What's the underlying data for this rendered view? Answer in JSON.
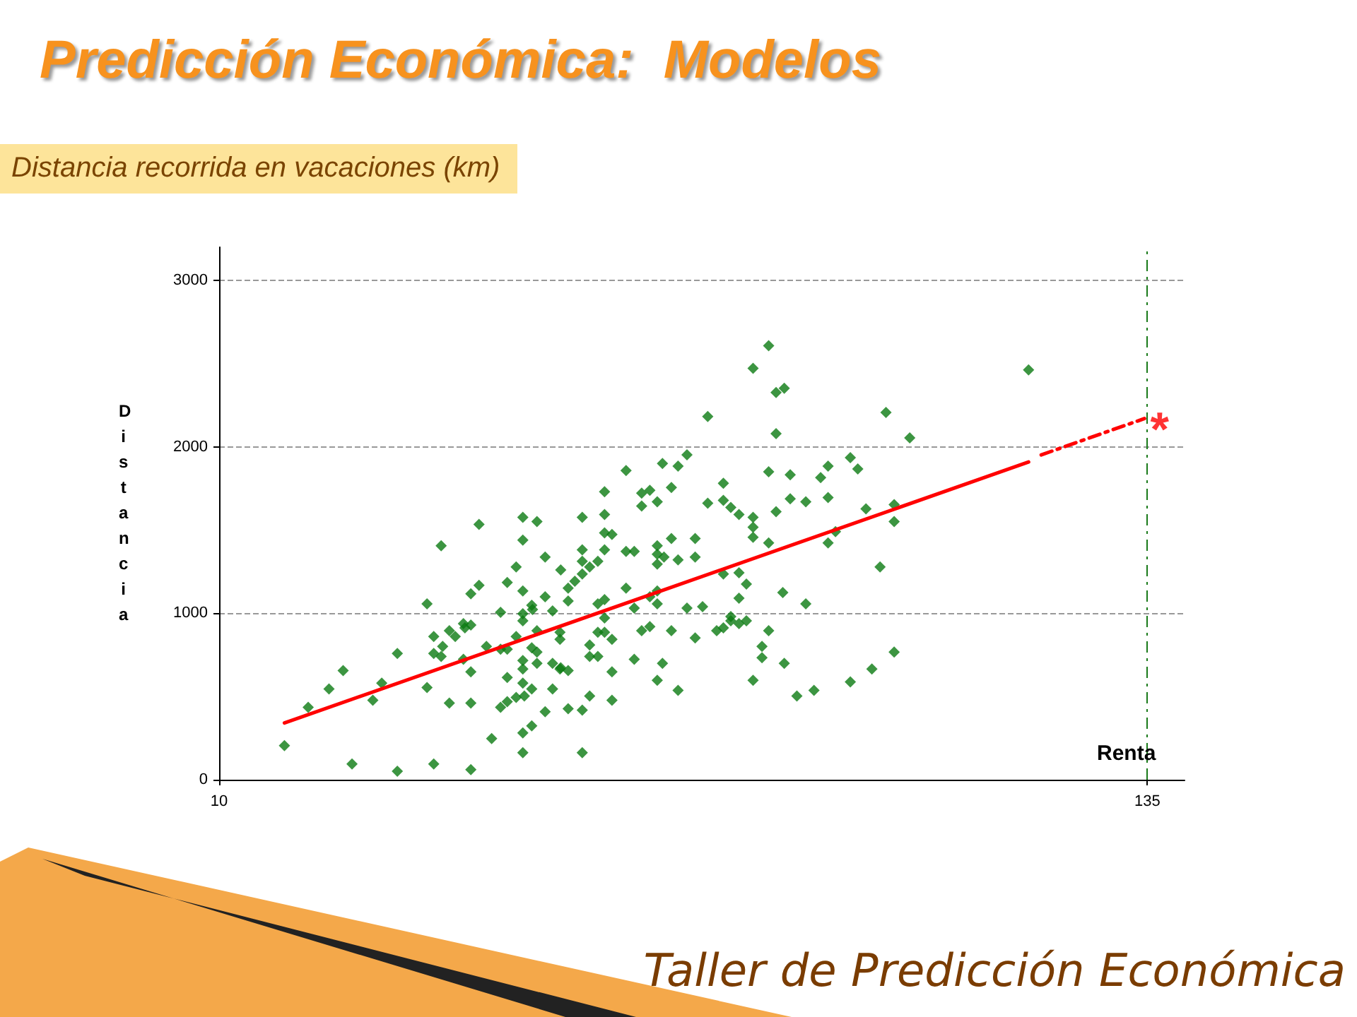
{
  "chart_data": {
    "type": "scatter",
    "title": "Predicción Económica:  Modelos",
    "subtitle": "Distancia recorrida en vacaciones (km)",
    "xlabel": "Renta",
    "ylabel": "Distancia",
    "xlim": [
      10,
      140
    ],
    "xticks": [
      10,
      135
    ],
    "ylim": [
      0,
      3200
    ],
    "yticks": [
      0,
      1000,
      2000,
      3000
    ],
    "grid": "y",
    "marker": "diamond",
    "series": [
      {
        "color": "#0b7a12",
        "x": [
          18.8,
          22.0,
          24.8,
          26.7,
          27.9,
          30.7,
          31.9,
          34.0,
          34.0,
          38.0,
          38.0,
          38.9,
          38.9,
          39.9,
          38.9,
          39.9,
          40.1,
          41.0,
          41.0,
          41.8,
          42.9,
          43.1,
          43.9,
          42.9,
          43.9,
          43.9,
          43.9,
          43.9,
          45.0,
          45.0,
          46.0,
          46.7,
          47.9,
          47.9,
          48.8,
          47.9,
          48.8,
          48.8,
          48.8,
          50.0,
          51.1,
          50.0,
          50.0,
          50.9,
          50.9,
          50.9,
          50.9,
          50.9,
          50.9,
          50.9,
          50.9,
          50.9,
          50.9,
          52.1,
          52.2,
          52.1,
          52.8,
          52.1,
          52.1,
          52.8,
          52.8,
          52.8,
          53.9,
          53.9,
          53.9,
          54.9,
          54.9,
          54.9,
          56.0,
          55.9,
          56.0,
          55.9,
          55.9,
          57.0,
          57.0,
          57.0,
          57.0,
          57.9,
          58.9,
          58.9,
          58.9,
          58.9,
          58.9,
          58.9,
          59.9,
          61.0,
          59.9,
          59.9,
          61.0,
          59.9,
          61.0,
          61.0,
          61.9,
          61.9,
          61.9,
          62.9,
          61.9,
          61.9,
          61.9,
          61.9,
          62.9,
          62.9,
          62.9,
          64.8,
          64.8,
          65.9,
          64.8,
          65.9,
          65.9,
          66.9,
          68.0,
          66.9,
          66.9,
          68.0,
          68.0,
          69.0,
          69.0,
          69.0,
          69.0,
          69.9,
          69.0,
          69.0,
          69.0,
          69.7,
          69.7,
          70.9,
          70.9,
          70.9,
          71.8,
          71.8,
          71.8,
          73.0,
          73.0,
          74.1,
          74.1,
          74.1,
          75.1,
          75.8,
          75.8,
          77.0,
          77.9,
          77.9,
          77.9,
          77.9,
          78.9,
          78.9,
          78.9,
          80.0,
          80.0,
          80.0,
          80.0,
          81.0,
          81.0,
          81.9,
          81.9,
          81.9,
          81.9,
          81.9,
          83.1,
          83.1,
          84.0,
          84.0,
          84.0,
          84.0,
          85.0,
          86.1,
          85.0,
          85.0,
          85.9,
          86.1,
          86.9,
          86.9,
          87.8,
          89.0,
          89.0,
          90.1,
          91.0,
          92.0,
          92.0,
          92.0,
          93.0,
          95.0,
          95.0,
          96.0,
          97.1,
          97.9,
          99.0,
          99.8,
          100.9,
          100.9,
          100.9,
          103.0,
          119.0
        ],
        "values": [
          205,
          435,
          545,
          656,
          94,
          477,
          580,
          759,
          51,
          1057,
          554,
          861,
          94,
          1406,
          759,
          741,
          801,
          895,
          460,
          861,
          938,
          912,
          929,
          724,
          1117,
          648,
          460,
          60,
          1534,
          1168,
          801,
          247,
          1006,
          784,
          784,
          435,
          1185,
          614,
          469,
          494,
          503,
          1278,
          861,
          1577,
          1440,
          1134,
          997,
          955,
          716,
          665,
          580,
          281,
          162,
          1048,
          1023,
          793,
          767,
          545,
          324,
          1551,
          895,
          699,
          1338,
          1099,
          409,
          1014,
          699,
          545,
          1261,
          844,
          673,
          886,
          665,
          656,
          1151,
          1074,
          426,
          1193,
          1577,
          1381,
          1312,
          1236,
          418,
          162,
          1278,
          1312,
          810,
          741,
          741,
          503,
          1057,
          886,
          1730,
          1594,
          1483,
          1474,
          1381,
          1082,
          972,
          886,
          844,
          648,
          477,
          1858,
          1372,
          1372,
          1151,
          1031,
          724,
          1722,
          1739,
          1645,
          895,
          920,
          1099,
          1670,
          1406,
          1355,
          1295,
          1338,
          1134,
          1057,
          597,
          1900,
          699,
          1756,
          1449,
          895,
          1884,
          1321,
          537,
          1952,
          1031,
          1449,
          1338,
          852,
          1040,
          2182,
          1662,
          895,
          912,
          1781,
          1679,
          1236,
          1636,
          980,
          955,
          1594,
          1244,
          1091,
          938,
          955,
          1176,
          2472,
          1577,
          1517,
          1457,
          597,
          801,
          733,
          2608,
          1850,
          1423,
          895,
          2327,
          2352,
          2080,
          1611,
          1125,
          699,
          1832,
          1688,
          503,
          1670,
          1057,
          537,
          1815,
          1884,
          1696,
          1423,
          1491,
          1935,
          588,
          1867,
          1628,
          665,
          1278,
          2207,
          1653,
          1551,
          767,
          2054,
          2463
        ]
      },
      {
        "type": "line",
        "color": "#ff0000",
        "marker": "none",
        "line_style": "solid",
        "x": [
          18.8,
          119.0
        ],
        "values": [
          341,
          1909
        ]
      },
      {
        "type": "line",
        "color": "#ff0000",
        "marker": "none",
        "line_style": "dashed",
        "x": [
          120.7,
          134.6
        ],
        "values": [
          1952,
          2170
        ]
      }
    ],
    "ref_lines": [
      {
        "axis": "x",
        "value": 135,
        "color": "#1a7a1a",
        "line_style": "dashed"
      }
    ],
    "annotations": [
      {
        "text": "*",
        "x": 135,
        "y": 2170
      },
      "Taller de Predicción Económica"
    ]
  }
}
